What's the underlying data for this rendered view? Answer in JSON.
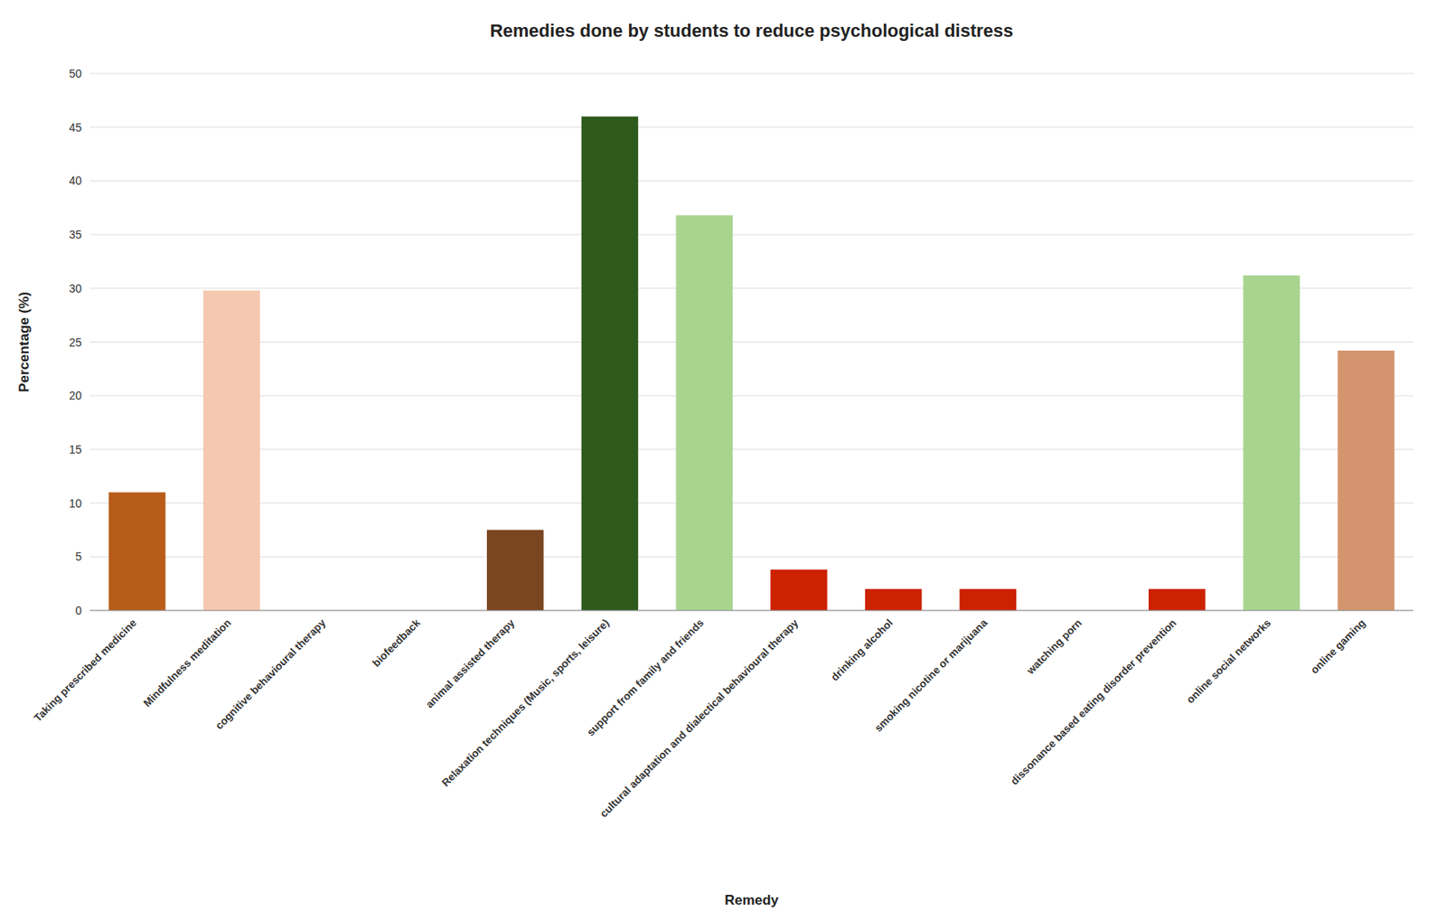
{
  "chart_data": {
    "type": "bar",
    "title": "Remedies done by students to reduce psychological distress",
    "xlabel": "Remedy",
    "ylabel": "Percentage (%)",
    "categories": [
      "Taking prescribed medicine",
      "Mindfulness meditation",
      "cognitive behavioural therapy",
      "biofeedback",
      "animal assisted therapy",
      "Relaxation techniques (Music, sports, leisure)",
      "support from family and friends",
      "cultural adaptation and dialectical behavioural therapy",
      "drinking alcohol",
      "smoking nicotine or marijuana",
      "watching porn",
      "dissonance based eating disorder prevention",
      "online social networks",
      "online gaming"
    ],
    "values": [
      11.0,
      29.8,
      0.0,
      0.0,
      7.5,
      46.0,
      36.8,
      3.8,
      2.0,
      2.0,
      0.0,
      2.0,
      31.2,
      24.2
    ],
    "colors": [
      "#b85c1a",
      "#f5c8b0",
      "#ffffff",
      "#ffffff",
      "#7a4520",
      "#2d5a1b",
      "#a8d490",
      "#cc2200",
      "#cc2200",
      "#cc2200",
      "#ffffff",
      "#cc2200",
      "#a8d490",
      "#d4956e"
    ],
    "ylim": [
      0,
      50
    ],
    "yticks": [
      0,
      5,
      10,
      15,
      20,
      25,
      30,
      35,
      40,
      45,
      50
    ],
    "grid": true
  }
}
